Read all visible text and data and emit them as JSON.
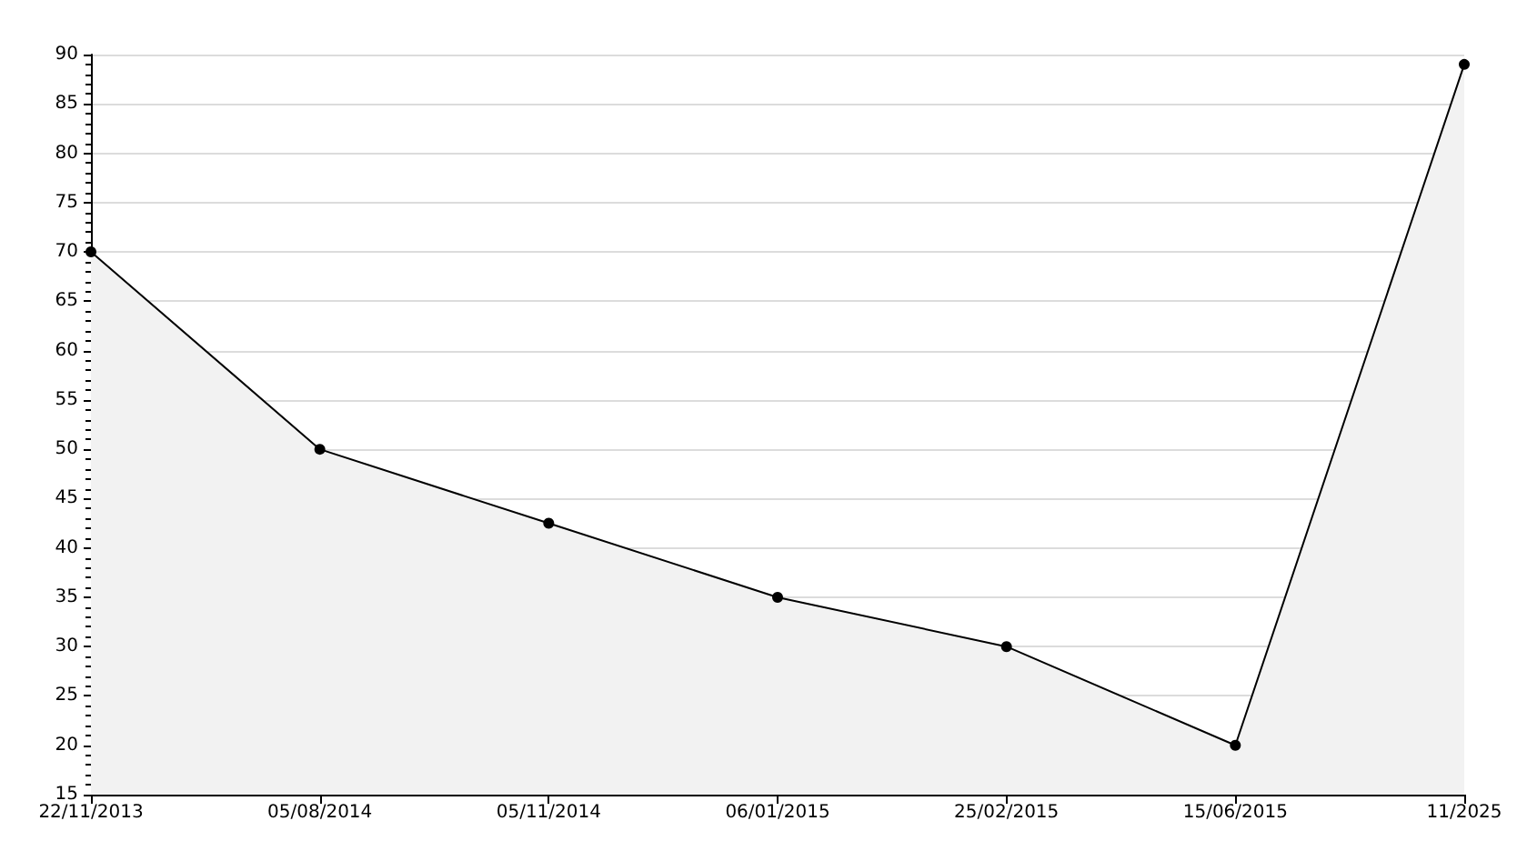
{
  "chart_data": {
    "type": "area",
    "categories": [
      "22/11/2013",
      "05/08/2014",
      "05/11/2014",
      "06/01/2015",
      "25/02/2015",
      "15/06/2015",
      "11/2025"
    ],
    "series": [
      {
        "color": "#000000",
        "values": [
          70,
          50,
          42.5,
          35,
          30,
          20,
          89
        ]
      }
    ],
    "ylim": [
      15,
      90
    ],
    "yticks": [
      15,
      20,
      25,
      30,
      35,
      40,
      45,
      50,
      55,
      60,
      65,
      70,
      75,
      80,
      85,
      90
    ],
    "grid": "y",
    "marker": "circle",
    "line_style": "solid"
  }
}
